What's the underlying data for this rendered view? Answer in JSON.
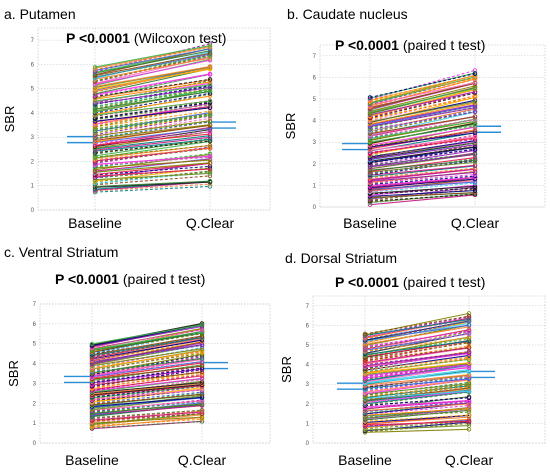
{
  "chart_data": [
    {
      "type": "line",
      "title": "a. Putamen",
      "test_p": "P <0.0001",
      "test_name": "(Wilcoxon test)",
      "ylabel": "SBR",
      "categories": [
        "Baseline",
        "Q.Clear"
      ],
      "yticks": [
        0,
        1,
        2,
        3,
        4,
        5,
        6,
        7
      ],
      "ylim": [
        0,
        7.5
      ],
      "mean": [
        2.9,
        3.5
      ],
      "baseline_range": [
        0.7,
        5.9
      ],
      "qclear_range": [
        0.8,
        7.3
      ],
      "n_subjects": 120
    },
    {
      "type": "line",
      "title": "b. Caudate nucleus",
      "test_p": "P <0.0001",
      "test_name": "(paired t test)",
      "ylabel": "SBR",
      "categories": [
        "Baseline",
        "Q.Clear"
      ],
      "yticks": [
        0,
        1,
        2,
        3,
        4,
        5,
        6,
        7
      ],
      "ylim": [
        0,
        7.5
      ],
      "mean": [
        2.8,
        3.6
      ],
      "baseline_range": [
        0.1,
        5.1
      ],
      "qclear_range": [
        0.1,
        6.9
      ],
      "n_subjects": 120
    },
    {
      "type": "line",
      "title": "c. Ventral Striatum",
      "test_p": "P <0.0001",
      "test_name": "(paired t test)",
      "ylabel": "SBR",
      "categories": [
        "Baseline",
        "Q.Clear"
      ],
      "yticks": [
        0,
        1,
        2,
        3,
        4,
        5,
        6,
        7
      ],
      "ylim": [
        0,
        7
      ],
      "mean": [
        3.2,
        3.9
      ],
      "baseline_range": [
        0.7,
        5.0
      ],
      "qclear_range": [
        0.9,
        6.3
      ],
      "n_subjects": 120
    },
    {
      "type": "line",
      "title": "d. Dorsal Striatum",
      "test_p": "P <0.0001",
      "test_name": "(paired t test)",
      "ylabel": "SBR",
      "categories": [
        "Baseline",
        "Q.Clear"
      ],
      "yticks": [
        0,
        1,
        2,
        3,
        4,
        5,
        6,
        7
      ],
      "ylim": [
        0,
        7.5
      ],
      "mean": [
        2.9,
        3.5
      ],
      "baseline_range": [
        0.5,
        5.6
      ],
      "qclear_range": [
        0.6,
        7.2
      ],
      "n_subjects": 120
    }
  ],
  "colors": {
    "mean_marker": "#2b8fd6",
    "series_palette": [
      "#e6194b",
      "#3cb44b",
      "#ffb000",
      "#4363d8",
      "#f58231",
      "#911eb4",
      "#42d4f4",
      "#f032e6",
      "#2e7d32",
      "#8b4513",
      "#000080",
      "#808000",
      "#c71585",
      "#008080",
      "#ff69b4",
      "#1a1a1a",
      "#ff8c00",
      "#6b8e23"
    ],
    "grid": "#b8b8b8",
    "axis": "#666666"
  }
}
